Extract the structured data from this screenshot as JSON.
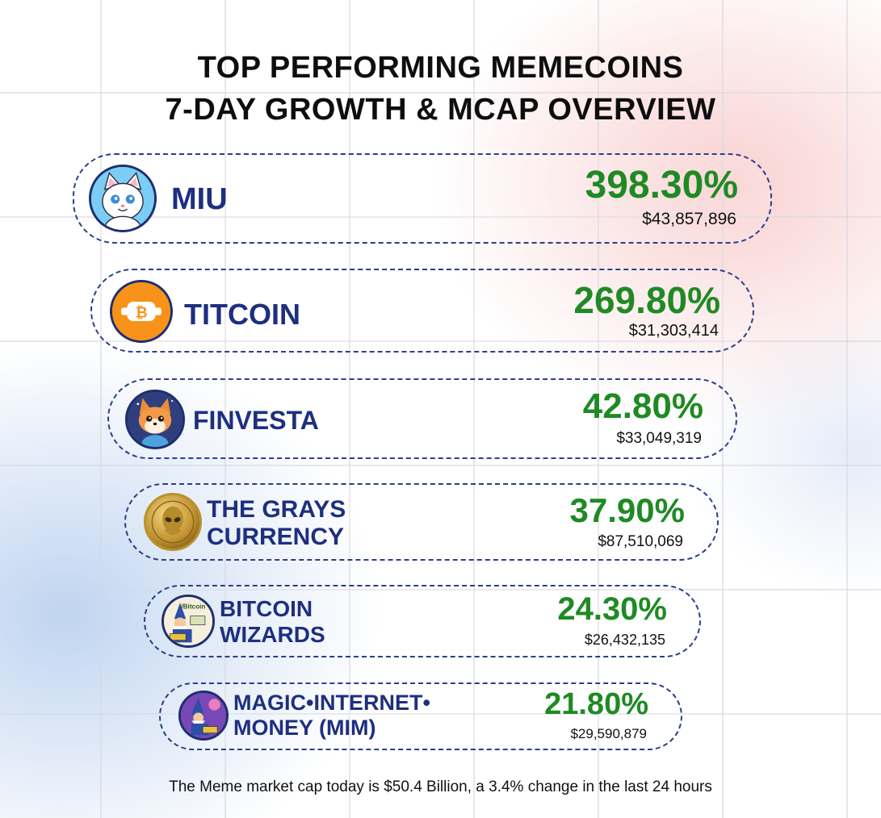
{
  "title": {
    "line1": "TOP PERFORMING MEMECOINS",
    "line2": "7-DAY GROWTH & MCAP OVERVIEW"
  },
  "coins": [
    {
      "name": "MIU",
      "growth": "398.30%",
      "mcap": "$43,857,896",
      "icon": "white-cat-icon"
    },
    {
      "name": "TITCOIN",
      "growth": "269.80%",
      "mcap": "$31,303,414",
      "icon": "orange-bitcoin-icon"
    },
    {
      "name": "FINVESTA",
      "growth": "42.80%",
      "mcap": "$33,049,319",
      "icon": "fox-icon"
    },
    {
      "name_line1": "THE GRAYS",
      "name_line2": "CURRENCY",
      "growth": "37.90%",
      "mcap": "$87,510,069",
      "icon": "alien-gold-coin-icon"
    },
    {
      "name_line1": "BITCOIN",
      "name_line2": "WIZARDS",
      "growth": "24.30%",
      "mcap": "$26,432,135",
      "icon": "wizard-icon"
    },
    {
      "name_line1": "MAGIC•INTERNET•",
      "name_line2": "MONEY (MIM)",
      "growth": "21.80%",
      "mcap": "$29,590,879",
      "icon": "wizard-purple-icon"
    }
  ],
  "footer": "The Meme market cap today is $50.4 Billion, a 3.4% change in the last 24 hours",
  "colors": {
    "growth": "#1f8a24",
    "name": "#1e2f80",
    "border": "#2a3f87"
  }
}
